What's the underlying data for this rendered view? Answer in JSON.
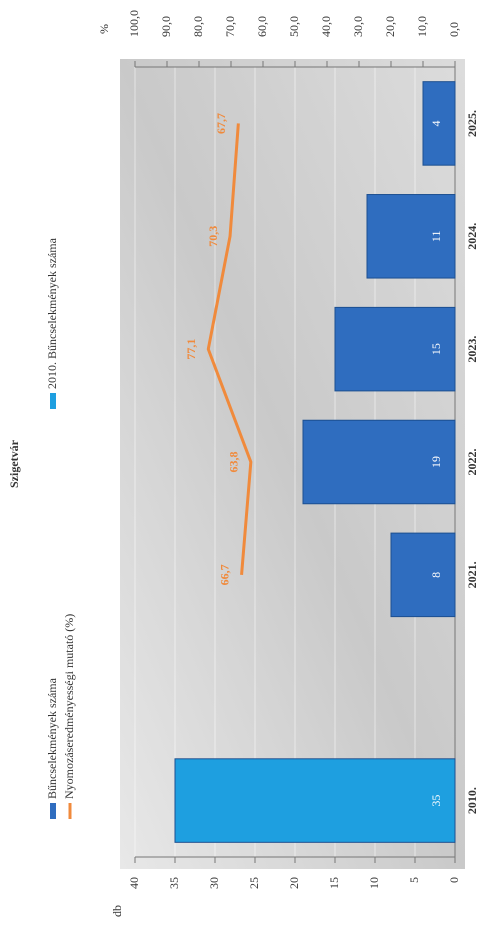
{
  "chart_data": {
    "type": "bar",
    "title": "Szigetvár",
    "categories": [
      "2010.",
      null,
      "2021.",
      "2022.",
      "2023.",
      "2024.",
      "2025."
    ],
    "series": [
      {
        "name": "Bűncselekmények száma",
        "color": "#2f6dbf",
        "values": [
          null,
          null,
          8,
          19,
          15,
          11,
          4
        ]
      },
      {
        "name": "2010. Bűncselekmények száma",
        "color": "#1e9fe0",
        "values": [
          35,
          null,
          null,
          null,
          null,
          null,
          null
        ]
      },
      {
        "name": "Nyomozáseredményességi mutató (%)",
        "color": "#f08a3c",
        "type": "line",
        "axis": "y2",
        "values": [
          null,
          null,
          66.7,
          63.8,
          77.1,
          70.3,
          67.7
        ],
        "value_labels": [
          null,
          null,
          "66,7",
          "63,8",
          "77,1",
          "70,3",
          "67,7"
        ]
      }
    ],
    "y_label": "db",
    "y2_label": "%",
    "ylim": [
      0,
      40
    ],
    "yticks": [
      0,
      5,
      10,
      15,
      20,
      25,
      30,
      35,
      40
    ],
    "y2lim": [
      0,
      100
    ],
    "y2ticks": [
      {
        "value": 0,
        "label": "0,0"
      },
      {
        "value": 10,
        "label": "10,0"
      },
      {
        "value": 20,
        "label": "20,0"
      },
      {
        "value": 30,
        "label": "30,0"
      },
      {
        "value": 40,
        "label": "40,0"
      },
      {
        "value": 50,
        "label": "50,0"
      },
      {
        "value": 60,
        "label": "60,0"
      },
      {
        "value": 70,
        "label": "70,0"
      },
      {
        "value": 80,
        "label": "80,0"
      },
      {
        "value": 90,
        "label": "90,0"
      },
      {
        "value": 100,
        "label": "100,0"
      }
    ],
    "grid": true
  }
}
